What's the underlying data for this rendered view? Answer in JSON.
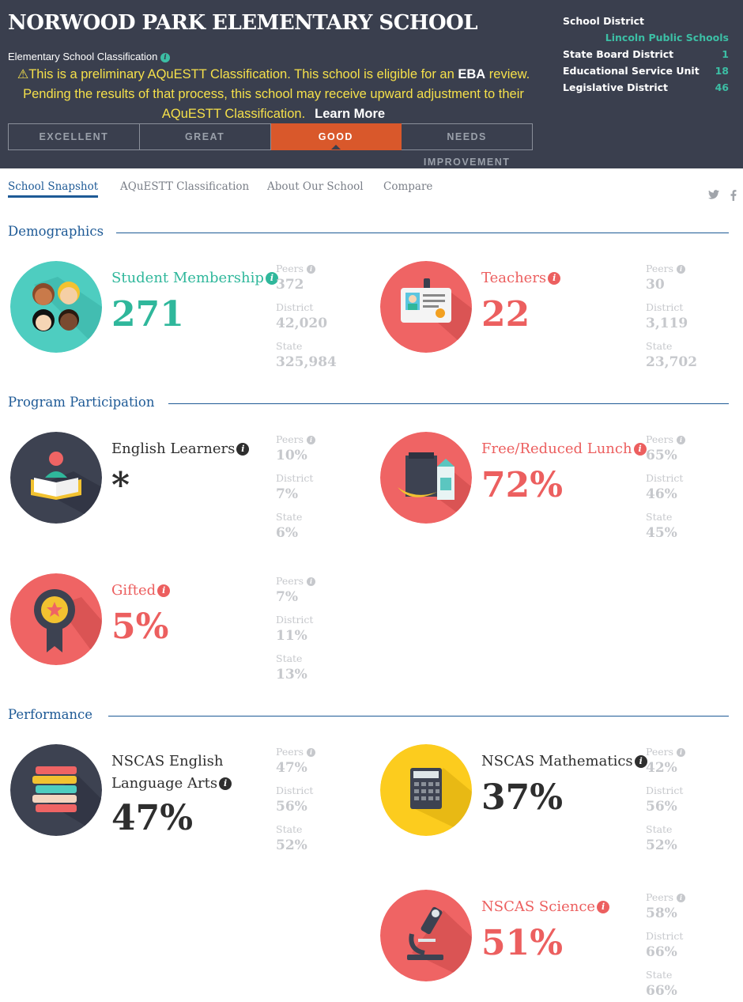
{
  "header": {
    "school_name": "NORWOOD PARK ELEMENTARY SCHOOL",
    "classification_label": "Elementary School Classification",
    "notice_pre": "This is a preliminary AQuESTT Classification. This school is eligible for an ",
    "notice_bold": "EBA",
    "notice_post": " review. Pending the results of that process, this school may receive upward adjustment to their AQuESTT Classification.",
    "learn_more": "Learn More",
    "classifications": [
      "EXCELLENT",
      "GREAT",
      "GOOD",
      "NEEDS IMPROVEMENT"
    ],
    "active_classification": "GOOD",
    "district_panel": {
      "school_district_label": "School District",
      "school_district_value": "Lincoln Public Schools",
      "rows": [
        {
          "label": "State Board District",
          "value": "1"
        },
        {
          "label": "Educational Service Unit",
          "value": "18"
        },
        {
          "label": "Legislative District",
          "value": "46"
        }
      ]
    }
  },
  "nav": {
    "tabs": [
      "School Snapshot",
      "AQuESTT Classification",
      "About Our School",
      "Compare"
    ],
    "active_tab": "School Snapshot"
  },
  "sections": {
    "demographics": "Demographics",
    "program": "Program Participation",
    "performance": "Performance"
  },
  "labels": {
    "peers": "Peers",
    "district": "District",
    "state": "State"
  },
  "metrics": {
    "student_membership": {
      "name": "Student Membership",
      "value": "271",
      "peers": "372",
      "district": "42,020",
      "state": "325,984"
    },
    "teachers": {
      "name": "Teachers",
      "value": "22",
      "peers": "30",
      "district": "3,119",
      "state": "23,702"
    },
    "english_learners": {
      "name": "English Learners",
      "value": "*",
      "peers": "10%",
      "district": "7%",
      "state": "6%"
    },
    "free_reduced_lunch": {
      "name": "Free/Reduced Lunch",
      "value": "72%",
      "peers": "65%",
      "district": "46%",
      "state": "45%"
    },
    "gifted": {
      "name": "Gifted",
      "value": "5%",
      "peers": "7%",
      "district": "11%",
      "state": "13%"
    },
    "nscas_ela": {
      "name_line1": "NSCAS English",
      "name_line2": "Language Arts",
      "value": "47%",
      "peers": "47%",
      "district": "56%",
      "state": "52%"
    },
    "nscas_math": {
      "name": "NSCAS Mathematics",
      "value": "37%",
      "peers": "42%",
      "district": "56%",
      "state": "52%"
    },
    "nscas_science": {
      "name": "NSCAS Science",
      "value": "51%",
      "peers": "58%",
      "district": "66%",
      "state": "66%"
    }
  },
  "colors": {
    "header_bg": "#3a3f4e",
    "teal": "#2fb79b",
    "red": "#ec5f5f",
    "orange_active": "#d9582b",
    "notice_yellow": "#f5e04a",
    "blue": "#1e5a96",
    "yellow_circle": "#fccc1e"
  },
  "icons": {
    "info": "info-icon",
    "warning": "warning-icon",
    "twitter": "twitter-icon",
    "facebook": "facebook-icon"
  }
}
